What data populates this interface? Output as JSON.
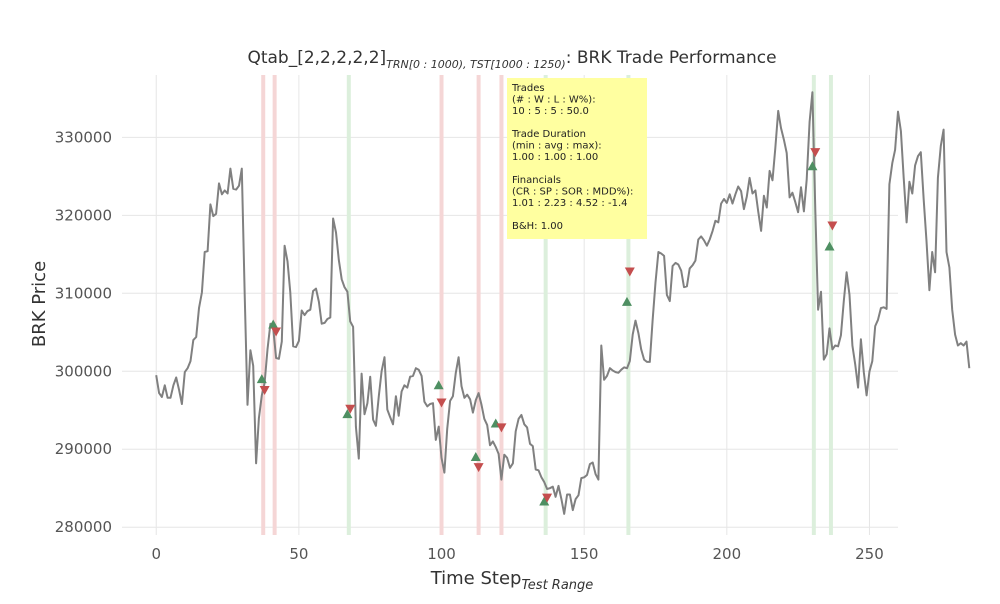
{
  "chart_data": {
    "type": "line",
    "title": {
      "main_pre": "Qtab_[2,2,2,2,2]",
      "main_sub": "TRN[0 : 1000), TST[1000 : 1250)",
      "main_post": ": BRK Trade Performance"
    },
    "xlabel": {
      "main": "Time Step",
      "sub": "Test Range"
    },
    "ylabel": "BRK Price",
    "xlim": [
      -12,
      260
    ],
    "ylim": [
      279000,
      338000
    ],
    "x_ticks": [
      0,
      50,
      100,
      150,
      200,
      250
    ],
    "y_ticks": [
      280000,
      290000,
      300000,
      310000,
      320000,
      330000
    ],
    "x_tick_labels": [
      "0",
      "50",
      "100",
      "150",
      "200",
      "250"
    ],
    "y_tick_labels": [
      "280000",
      "290000",
      "300000",
      "310000",
      "320000",
      "330000"
    ],
    "grid": true,
    "colors": {
      "line": "#808080",
      "buy": "#4e8f62",
      "sell": "#c44e4e",
      "buy_span": "#dcefdc",
      "sell_span": "#f5d6d6",
      "info_box": "#ffffa0",
      "grid": "#e6e6e6"
    },
    "series": [
      {
        "values": [
          299500,
          297200,
          296700,
          298200,
          296600,
          296600,
          298200,
          299200,
          297600,
          295800,
          299900,
          300400,
          301300,
          304000,
          304400,
          308100,
          310100,
          315300,
          315400,
          321400,
          319900,
          320200,
          324100,
          322700,
          323200,
          322800,
          326000,
          323400,
          323300,
          323800,
          326000,
          309800,
          295700,
          302700,
          300700,
          288200,
          294000,
          296900,
          298500,
          302800,
          306100,
          305500,
          301700,
          301600,
          303800,
          316100,
          314100,
          310100,
          303200,
          303100,
          303900,
          307800,
          307200,
          307700,
          307900,
          310300,
          310600,
          308900,
          306100,
          306200,
          306700,
          306900,
          319600,
          317800,
          314300,
          311800,
          310800,
          310200,
          306400,
          305700,
          292900,
          288800,
          299700,
          294500,
          295900,
          299300,
          293800,
          293000,
          296800,
          300000,
          301800,
          295100,
          294100,
          293200,
          296800,
          294300,
          297400,
          298200,
          297900,
          299300,
          299400,
          300400,
          300200,
          299400,
          296100,
          295500,
          295800,
          295900,
          291200,
          292900,
          288900,
          287000,
          292600,
          296200,
          296800,
          299800,
          301800,
          298100,
          296600,
          297000,
          296400,
          294700,
          296300,
          297200,
          295700,
          293900,
          293100,
          290500,
          291000,
          290300,
          289400,
          286100,
          289300,
          288900,
          287600,
          288200,
          292300,
          293900,
          294400,
          293200,
          292800,
          290700,
          290400,
          287400,
          287300,
          286400,
          285800,
          284900,
          285000,
          285200,
          283900,
          285300,
          283600,
          281700,
          284200,
          284200,
          282200,
          283600,
          284100,
          286300,
          286400,
          286700,
          288100,
          288300,
          286800,
          286100,
          303300,
          298900,
          299400,
          300400,
          300100,
          299900,
          299800,
          300200,
          300500,
          300400,
          301300,
          304700,
          306500,
          304900,
          302800,
          301500,
          301200,
          301200,
          306500,
          311400,
          315300,
          315100,
          314800,
          309800,
          309000,
          313500,
          313900,
          313700,
          312900,
          310800,
          310900,
          313200,
          313600,
          314200,
          316900,
          317300,
          316800,
          316100,
          316900,
          318000,
          319300,
          319100,
          321500,
          322100,
          321600,
          322700,
          321500,
          322700,
          323700,
          323100,
          320800,
          322400,
          324800,
          322800,
          323200,
          320500,
          318000,
          322500,
          321000,
          325700,
          324500,
          328600,
          333400,
          331200,
          329700,
          328000,
          322300,
          322900,
          321700,
          320400,
          323600,
          320500,
          324600,
          332000,
          335800,
          320700,
          307900,
          310200,
          301500,
          302200,
          305500,
          302800,
          303300,
          303200,
          304600,
          309000,
          312700,
          309800,
          303300,
          300900,
          297900,
          304100,
          299900,
          296900,
          300000,
          301300,
          305800,
          306600,
          308100,
          308200,
          308000,
          324000,
          326700,
          328400,
          333300,
          330800,
          324800,
          319100,
          324300,
          322800,
          326400,
          327600,
          328100,
          322000,
          316700,
          310400,
          315300,
          312700,
          324800,
          328900,
          331000,
          315300,
          313300,
          307900,
          304700,
          303300,
          303600,
          303300,
          303800,
          300400
        ]
      }
    ],
    "buy_markers": [
      {
        "x": 37,
        "y": 299000
      },
      {
        "x": 41,
        "y": 306000
      },
      {
        "x": 67,
        "y": 294500
      },
      {
        "x": 99,
        "y": 298200
      },
      {
        "x": 112,
        "y": 289000
      },
      {
        "x": 119,
        "y": 293300
      },
      {
        "x": 136,
        "y": 283300
      },
      {
        "x": 165,
        "y": 308900
      },
      {
        "x": 230,
        "y": 326300
      },
      {
        "x": 236,
        "y": 316000
      }
    ],
    "sell_markers": [
      {
        "x": 38,
        "y": 297600
      },
      {
        "x": 42,
        "y": 305100
      },
      {
        "x": 68,
        "y": 295200
      },
      {
        "x": 100,
        "y": 296000
      },
      {
        "x": 113,
        "y": 287700
      },
      {
        "x": 121,
        "y": 292800
      },
      {
        "x": 137,
        "y": 283800
      },
      {
        "x": 166,
        "y": 312800
      },
      {
        "x": 231,
        "y": 328100
      },
      {
        "x": 237,
        "y": 318700
      }
    ],
    "buy_spans": [
      67.5,
      136.5,
      165.5,
      230.5,
      236.5
    ],
    "sell_spans": [
      37.5,
      41.5,
      100,
      113,
      121
    ],
    "annotation": {
      "lines": [
        "Trades",
        "(# : W : L : W%):",
        "10 : 5 : 5 : 50.0",
        "",
        "Trade Duration",
        "(min : avg : max):",
        "1.00 : 1.00 : 1.00",
        "",
        "Financials",
        "(CR : SP : SOR : MDD%):",
        "1.01 : 2.23 : 4.52 : -1.4",
        "",
        "B&H: 1.00"
      ]
    }
  }
}
